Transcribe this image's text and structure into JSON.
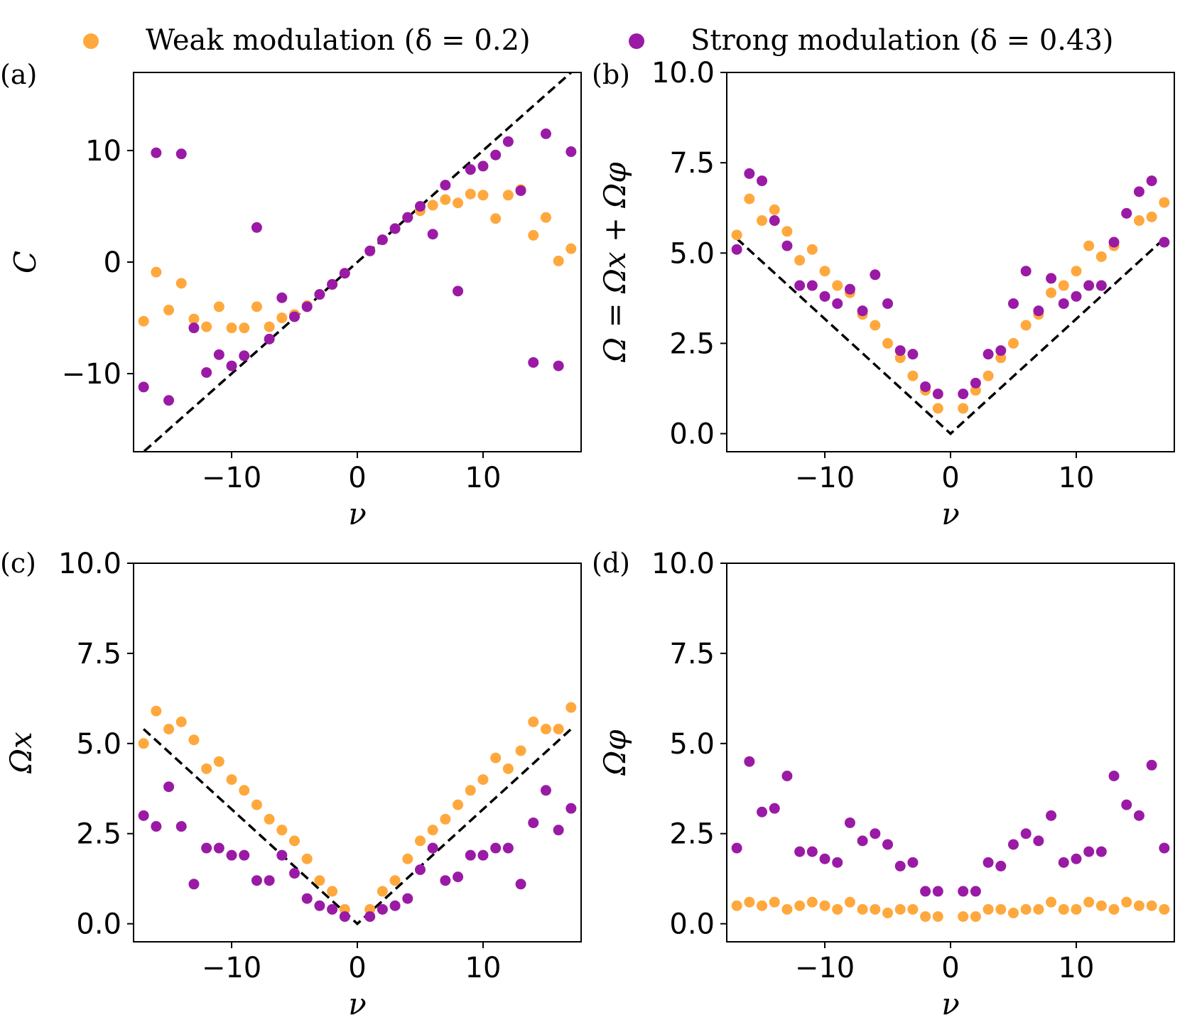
{
  "legend": [
    {
      "label": "Weak modulation (δ = 0.2)",
      "color": "#ffa83d"
    },
    {
      "label": "Strong modulation (δ = 0.43)",
      "color": "#9a1aa6"
    }
  ],
  "chart_data": [
    {
      "type": "scatter",
      "panel_label": "(a)",
      "xlabel": "ν",
      "ylabel": "C",
      "xlim": [
        -17.8,
        17.8
      ],
      "ylim": [
        -17,
        17
      ],
      "xticks": [
        -10,
        0,
        10
      ],
      "xtick_labels": [
        "−10",
        "0",
        "10"
      ],
      "yticks": [
        -10,
        0,
        10
      ],
      "ytick_labels": [
        "−10",
        "0",
        "10"
      ],
      "reference_line": {
        "style": "dashed",
        "x": [
          -17.8,
          17.8
        ],
        "y": [
          -17.8,
          17.8
        ]
      },
      "series": [
        {
          "name": "Weak modulation",
          "color": "#ffa83d",
          "x": [
            -17,
            -16,
            -15,
            -14,
            -13,
            -12,
            -11,
            -10,
            -9,
            -8,
            -7,
            -6,
            -5,
            -4,
            -3,
            -2,
            -1,
            1,
            2,
            3,
            4,
            5,
            6,
            7,
            8,
            9,
            10,
            11,
            12,
            13,
            14,
            15,
            16,
            17
          ],
          "y": [
            -5.3,
            -0.9,
            -4.3,
            -1.9,
            -5.1,
            -5.8,
            -4.0,
            -5.9,
            -5.9,
            -4.0,
            -5.8,
            -5.0,
            -4.7,
            -3.9,
            -2.9,
            -2.0,
            -1.0,
            1.0,
            2.0,
            3.0,
            4.0,
            4.6,
            5.1,
            5.6,
            5.3,
            6.1,
            6.0,
            3.9,
            6.0,
            6.5,
            2.4,
            4.0,
            0.1,
            1.2
          ]
        },
        {
          "name": "Strong modulation",
          "color": "#9a1aa6",
          "x": [
            -17,
            -16,
            -15,
            -14,
            -13,
            -12,
            -11,
            -10,
            -9,
            -8,
            -7,
            -6,
            -5,
            -4,
            -3,
            -2,
            -1,
            1,
            2,
            3,
            4,
            5,
            6,
            7,
            8,
            9,
            10,
            11,
            12,
            13,
            14,
            15,
            16,
            17
          ],
          "y": [
            -11.2,
            9.8,
            -12.4,
            9.7,
            -5.9,
            -9.9,
            -8.3,
            -9.3,
            -8.4,
            3.1,
            -6.9,
            -3.2,
            -4.9,
            -4.0,
            -2.9,
            -2.0,
            -1.0,
            1.0,
            2.0,
            3.0,
            4.0,
            5.0,
            2.5,
            6.9,
            -2.6,
            8.3,
            8.6,
            9.6,
            10.8,
            6.4,
            -9.0,
            11.5,
            -9.3,
            9.9
          ]
        }
      ]
    },
    {
      "type": "scatter",
      "panel_label": "(b)",
      "xlabel": "ν",
      "ylabel": "Ω = Ωx + Ωφ",
      "xlim": [
        -17.8,
        17.8
      ],
      "ylim": [
        -0.5,
        10.0
      ],
      "xticks": [
        -10,
        0,
        10
      ],
      "xtick_labels": [
        "−10",
        "0",
        "10"
      ],
      "yticks": [
        0,
        2.5,
        5.0,
        7.5,
        10.0
      ],
      "ytick_labels": [
        "0.0",
        "2.5",
        "5.0",
        "7.5",
        "10.0"
      ],
      "reference_line": {
        "style": "dashed",
        "x": [
          -17,
          0,
          17
        ],
        "y": [
          5.4,
          0,
          5.4
        ]
      },
      "series": [
        {
          "name": "Weak modulation",
          "color": "#ffa83d",
          "x": [
            -17,
            -16,
            -15,
            -14,
            -13,
            -12,
            -11,
            -10,
            -9,
            -8,
            -7,
            -6,
            -5,
            -4,
            -3,
            -2,
            -1,
            1,
            2,
            3,
            4,
            5,
            6,
            7,
            8,
            9,
            10,
            11,
            12,
            13,
            14,
            15,
            16,
            17
          ],
          "y": [
            5.5,
            6.5,
            5.9,
            6.2,
            5.6,
            4.8,
            5.1,
            4.5,
            4.1,
            3.9,
            3.3,
            3.0,
            2.5,
            2.1,
            1.6,
            1.2,
            0.7,
            0.7,
            1.2,
            1.6,
            2.1,
            2.5,
            3.0,
            3.3,
            3.9,
            4.1,
            4.5,
            5.2,
            4.9,
            5.2,
            6.1,
            5.9,
            6.0,
            6.4
          ]
        },
        {
          "name": "Strong modulation",
          "color": "#9a1aa6",
          "x": [
            -17,
            -16,
            -15,
            -14,
            -13,
            -12,
            -11,
            -10,
            -9,
            -8,
            -7,
            -6,
            -5,
            -4,
            -3,
            -2,
            -1,
            1,
            2,
            3,
            4,
            5,
            6,
            7,
            8,
            9,
            10,
            11,
            12,
            13,
            14,
            15,
            16,
            17
          ],
          "y": [
            5.1,
            7.2,
            7.0,
            5.9,
            5.2,
            4.1,
            4.1,
            3.8,
            3.6,
            4.0,
            3.4,
            4.4,
            3.6,
            2.3,
            2.2,
            1.3,
            1.1,
            1.1,
            1.4,
            2.2,
            2.3,
            3.6,
            4.5,
            3.4,
            4.3,
            3.6,
            3.8,
            4.1,
            4.1,
            5.3,
            6.1,
            6.7,
            7.0,
            5.3
          ]
        }
      ]
    },
    {
      "type": "scatter",
      "panel_label": "(c)",
      "xlabel": "ν",
      "ylabel": "Ωx",
      "xlim": [
        -17.8,
        17.8
      ],
      "ylim": [
        -0.5,
        10.0
      ],
      "xticks": [
        -10,
        0,
        10
      ],
      "xtick_labels": [
        "−10",
        "0",
        "10"
      ],
      "yticks": [
        0,
        2.5,
        5.0,
        7.5,
        10.0
      ],
      "ytick_labels": [
        "0.0",
        "2.5",
        "5.0",
        "7.5",
        "10.0"
      ],
      "reference_line": {
        "style": "dashed",
        "x": [
          -17,
          0,
          17
        ],
        "y": [
          5.4,
          0,
          5.4
        ]
      },
      "series": [
        {
          "name": "Weak modulation",
          "color": "#ffa83d",
          "x": [
            -17,
            -16,
            -15,
            -14,
            -13,
            -12,
            -11,
            -10,
            -9,
            -8,
            -7,
            -6,
            -5,
            -4,
            -3,
            -2,
            -1,
            1,
            2,
            3,
            4,
            5,
            6,
            7,
            8,
            9,
            10,
            11,
            12,
            13,
            14,
            15,
            16,
            17
          ],
          "y": [
            5.0,
            5.9,
            5.4,
            5.6,
            5.1,
            4.3,
            4.5,
            4.0,
            3.7,
            3.3,
            2.9,
            2.6,
            2.3,
            1.8,
            1.2,
            0.9,
            0.4,
            0.4,
            0.9,
            1.2,
            1.8,
            2.3,
            2.6,
            2.9,
            3.3,
            3.7,
            4.0,
            4.6,
            4.3,
            4.8,
            5.6,
            5.4,
            5.4,
            6.0
          ]
        },
        {
          "name": "Strong modulation",
          "color": "#9a1aa6",
          "x": [
            -17,
            -16,
            -15,
            -14,
            -13,
            -12,
            -11,
            -10,
            -9,
            -8,
            -7,
            -6,
            -5,
            -4,
            -3,
            -2,
            -1,
            1,
            2,
            3,
            4,
            5,
            6,
            7,
            8,
            9,
            10,
            11,
            12,
            13,
            14,
            15,
            16,
            17
          ],
          "y": [
            3.0,
            2.7,
            3.8,
            2.7,
            1.1,
            2.1,
            2.1,
            1.9,
            1.9,
            1.2,
            1.2,
            1.9,
            1.4,
            0.7,
            0.5,
            0.4,
            0.2,
            0.2,
            0.4,
            0.5,
            0.7,
            1.5,
            2.1,
            1.2,
            1.3,
            1.9,
            1.9,
            2.1,
            2.1,
            1.1,
            2.8,
            3.7,
            2.6,
            3.2
          ]
        }
      ]
    },
    {
      "type": "scatter",
      "panel_label": "(d)",
      "xlabel": "ν",
      "ylabel": "Ωφ",
      "xlim": [
        -17.8,
        17.8
      ],
      "ylim": [
        -0.5,
        10.0
      ],
      "xticks": [
        -10,
        0,
        10
      ],
      "xtick_labels": [
        "−10",
        "0",
        "10"
      ],
      "yticks": [
        0,
        2.5,
        5.0,
        7.5,
        10.0
      ],
      "ytick_labels": [
        "0.0",
        "2.5",
        "5.0",
        "7.5",
        "10.0"
      ],
      "series": [
        {
          "name": "Weak modulation",
          "color": "#ffa83d",
          "x": [
            -17,
            -16,
            -15,
            -14,
            -13,
            -12,
            -11,
            -10,
            -9,
            -8,
            -7,
            -6,
            -5,
            -4,
            -3,
            -2,
            -1,
            1,
            2,
            3,
            4,
            5,
            6,
            7,
            8,
            9,
            10,
            11,
            12,
            13,
            14,
            15,
            16,
            17
          ],
          "y": [
            0.5,
            0.6,
            0.5,
            0.6,
            0.4,
            0.5,
            0.6,
            0.5,
            0.4,
            0.6,
            0.4,
            0.4,
            0.3,
            0.4,
            0.4,
            0.2,
            0.2,
            0.2,
            0.2,
            0.4,
            0.4,
            0.3,
            0.4,
            0.4,
            0.6,
            0.4,
            0.4,
            0.6,
            0.5,
            0.4,
            0.6,
            0.5,
            0.5,
            0.4
          ]
        },
        {
          "name": "Strong modulation",
          "color": "#9a1aa6",
          "x": [
            -17,
            -16,
            -15,
            -14,
            -13,
            -12,
            -11,
            -10,
            -9,
            -8,
            -7,
            -6,
            -5,
            -4,
            -3,
            -2,
            -1,
            1,
            2,
            3,
            4,
            5,
            6,
            7,
            8,
            9,
            10,
            11,
            12,
            13,
            14,
            15,
            16,
            17
          ],
          "y": [
            2.1,
            4.5,
            3.1,
            3.2,
            4.1,
            2.0,
            2.0,
            1.8,
            1.7,
            2.8,
            2.3,
            2.5,
            2.2,
            1.6,
            1.7,
            0.9,
            0.9,
            0.9,
            0.9,
            1.7,
            1.6,
            2.2,
            2.5,
            2.3,
            3.0,
            1.7,
            1.8,
            2.0,
            2.0,
            4.1,
            3.3,
            3.0,
            4.4,
            2.1
          ]
        }
      ]
    }
  ]
}
